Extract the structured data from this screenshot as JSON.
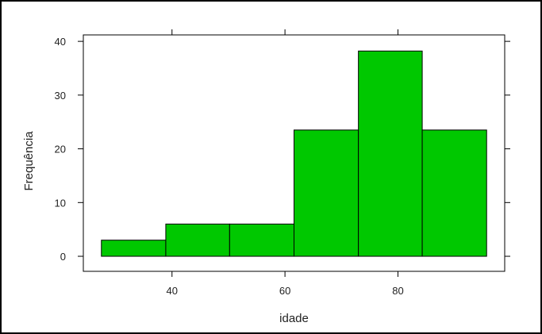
{
  "chart_data": {
    "type": "bar",
    "style": "histogram",
    "xlabel": "idade",
    "ylabel": "Frequência",
    "bins": [
      {
        "x0": 27.5,
        "x1": 38.9,
        "value": 3
      },
      {
        "x0": 38.9,
        "x1": 50.2,
        "value": 6
      },
      {
        "x0": 50.2,
        "x1": 61.6,
        "value": 6
      },
      {
        "x0": 61.6,
        "x1": 73.0,
        "value": 23.5
      },
      {
        "x0": 73.0,
        "x1": 84.3,
        "value": 38.2
      },
      {
        "x0": 84.3,
        "x1": 95.7,
        "value": 23.5
      }
    ],
    "xlim": [
      24.3,
      98.9
    ],
    "ylim": [
      -2.8,
      41.2
    ],
    "xticks": [
      40,
      60,
      80
    ],
    "xtick_labels": [
      "40",
      "60",
      "80"
    ],
    "yticks": [
      0,
      10,
      20,
      30,
      40
    ],
    "ytick_labels": [
      "0",
      "10",
      "20",
      "30",
      "40"
    ],
    "bar_color": "#00c800",
    "edge_color": "#000000",
    "grid": false,
    "legend": "none"
  }
}
